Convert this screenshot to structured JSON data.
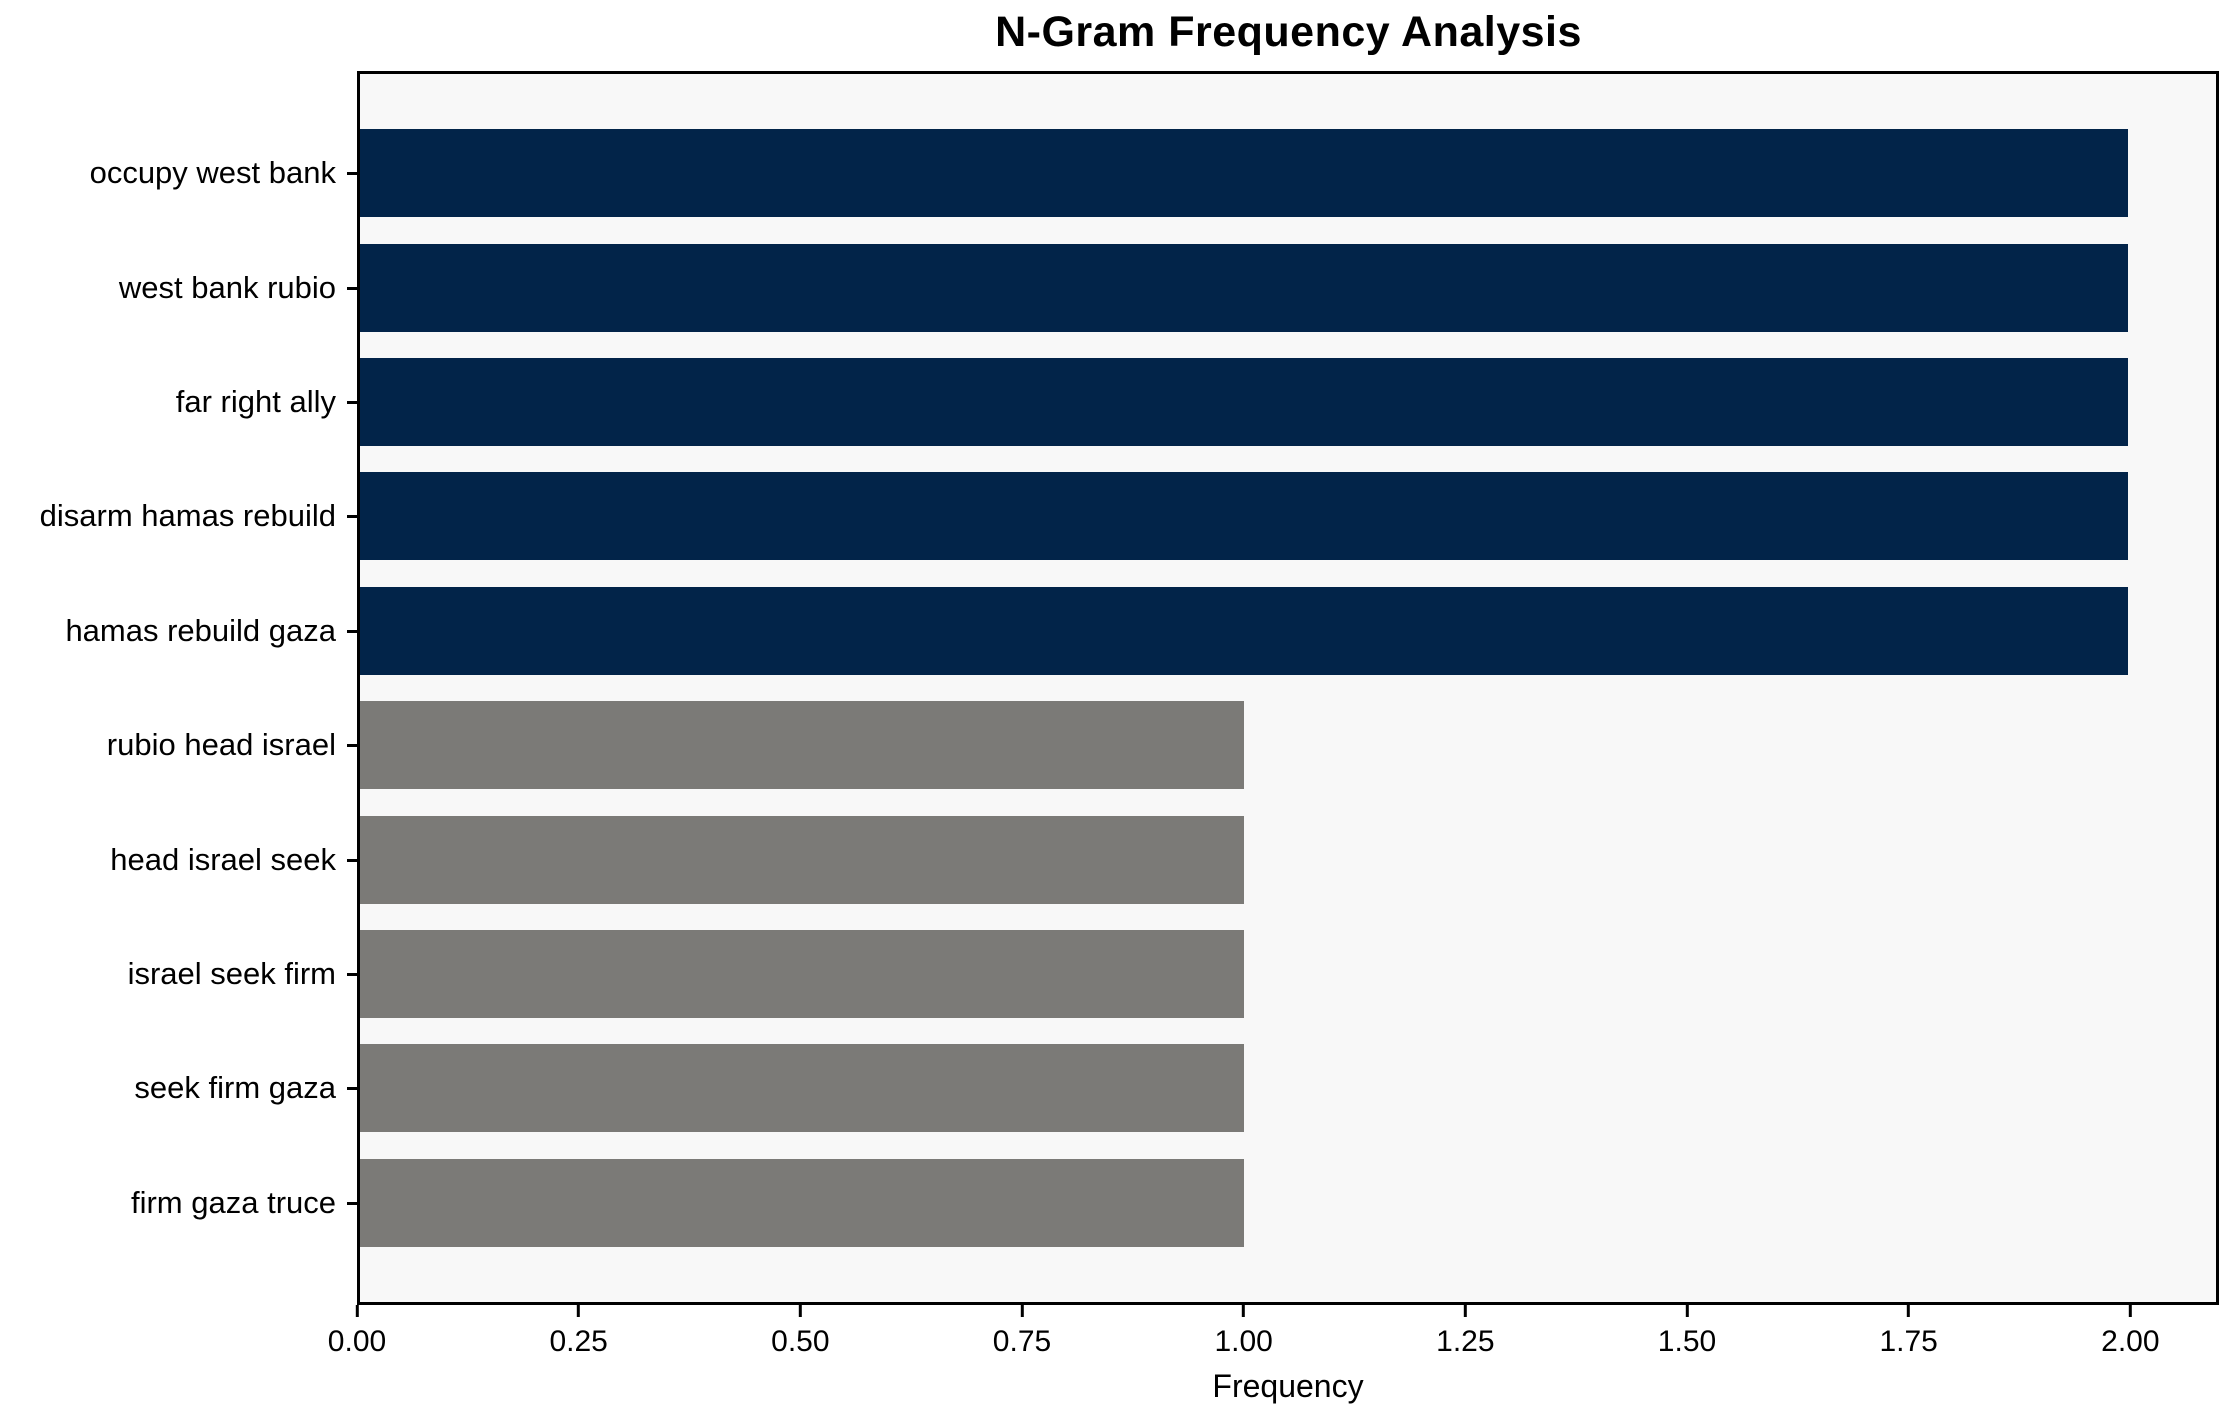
{
  "chart_data": {
    "type": "bar",
    "orientation": "horizontal",
    "title": "N-Gram Frequency Analysis",
    "xlabel": "Frequency",
    "ylabel": "",
    "categories": [
      "occupy west bank",
      "west bank rubio",
      "far right ally",
      "disarm hamas rebuild",
      "hamas rebuild gaza",
      "rubio head israel",
      "head israel seek",
      "israel seek firm",
      "seek firm gaza",
      "firm gaza truce"
    ],
    "values": [
      2,
      2,
      2,
      2,
      2,
      1,
      1,
      1,
      1,
      1
    ],
    "bar_colors": [
      "#022449",
      "#022449",
      "#022449",
      "#022449",
      "#022449",
      "#7b7a77",
      "#7b7a77",
      "#7b7a77",
      "#7b7a77",
      "#7b7a77"
    ],
    "xlim": [
      0,
      2.1
    ],
    "x_tick_values": [
      0,
      0.25,
      0.5,
      0.75,
      1.0,
      1.25,
      1.5,
      1.75,
      2.0
    ],
    "x_tick_labels": [
      "0.00",
      "0.25",
      "0.50",
      "0.75",
      "1.00",
      "1.25",
      "1.50",
      "1.75",
      "2.00"
    ],
    "grid": false,
    "legend": null,
    "layout": {
      "plot_background": "#f8f8f8",
      "figure_background": "#ffffff",
      "axis_color": "#000000"
    },
    "colors": {
      "high_frequency_bar": "#022449",
      "low_frequency_bar": "#7b7a77"
    }
  }
}
